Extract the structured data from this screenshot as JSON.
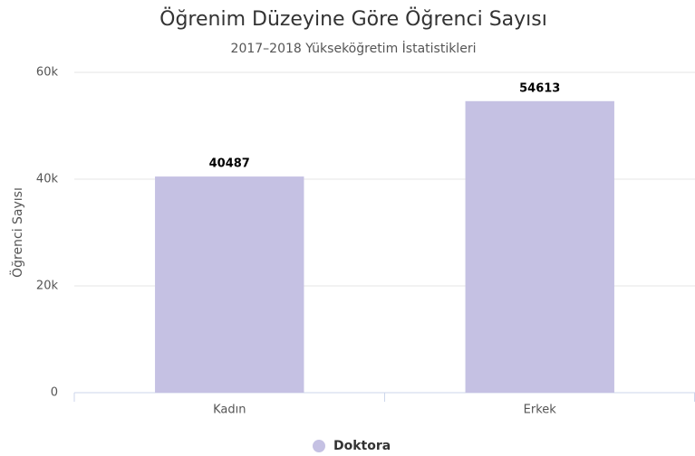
{
  "chart_data": {
    "type": "bar",
    "title": "Öğrenim Düzeyine Göre Öğrenci Sayısı",
    "subtitle": "2017–2018 Yükseköğretim İstatistikleri",
    "y_label": "Öğrenci Sayısı",
    "categories": [
      "Kadın",
      "Erkek"
    ],
    "series": [
      {
        "name": "Doktora",
        "color": "#c5c1e3",
        "values": [
          40487,
          54613
        ]
      }
    ],
    "ylim": [
      0,
      60000
    ],
    "yticks": [
      {
        "value": 0,
        "label": "0"
      },
      {
        "value": 20000,
        "label": "20k"
      },
      {
        "value": 40000,
        "label": "40k"
      },
      {
        "value": 60000,
        "label": "60k"
      }
    ],
    "grid": true,
    "legend": "bottom"
  }
}
